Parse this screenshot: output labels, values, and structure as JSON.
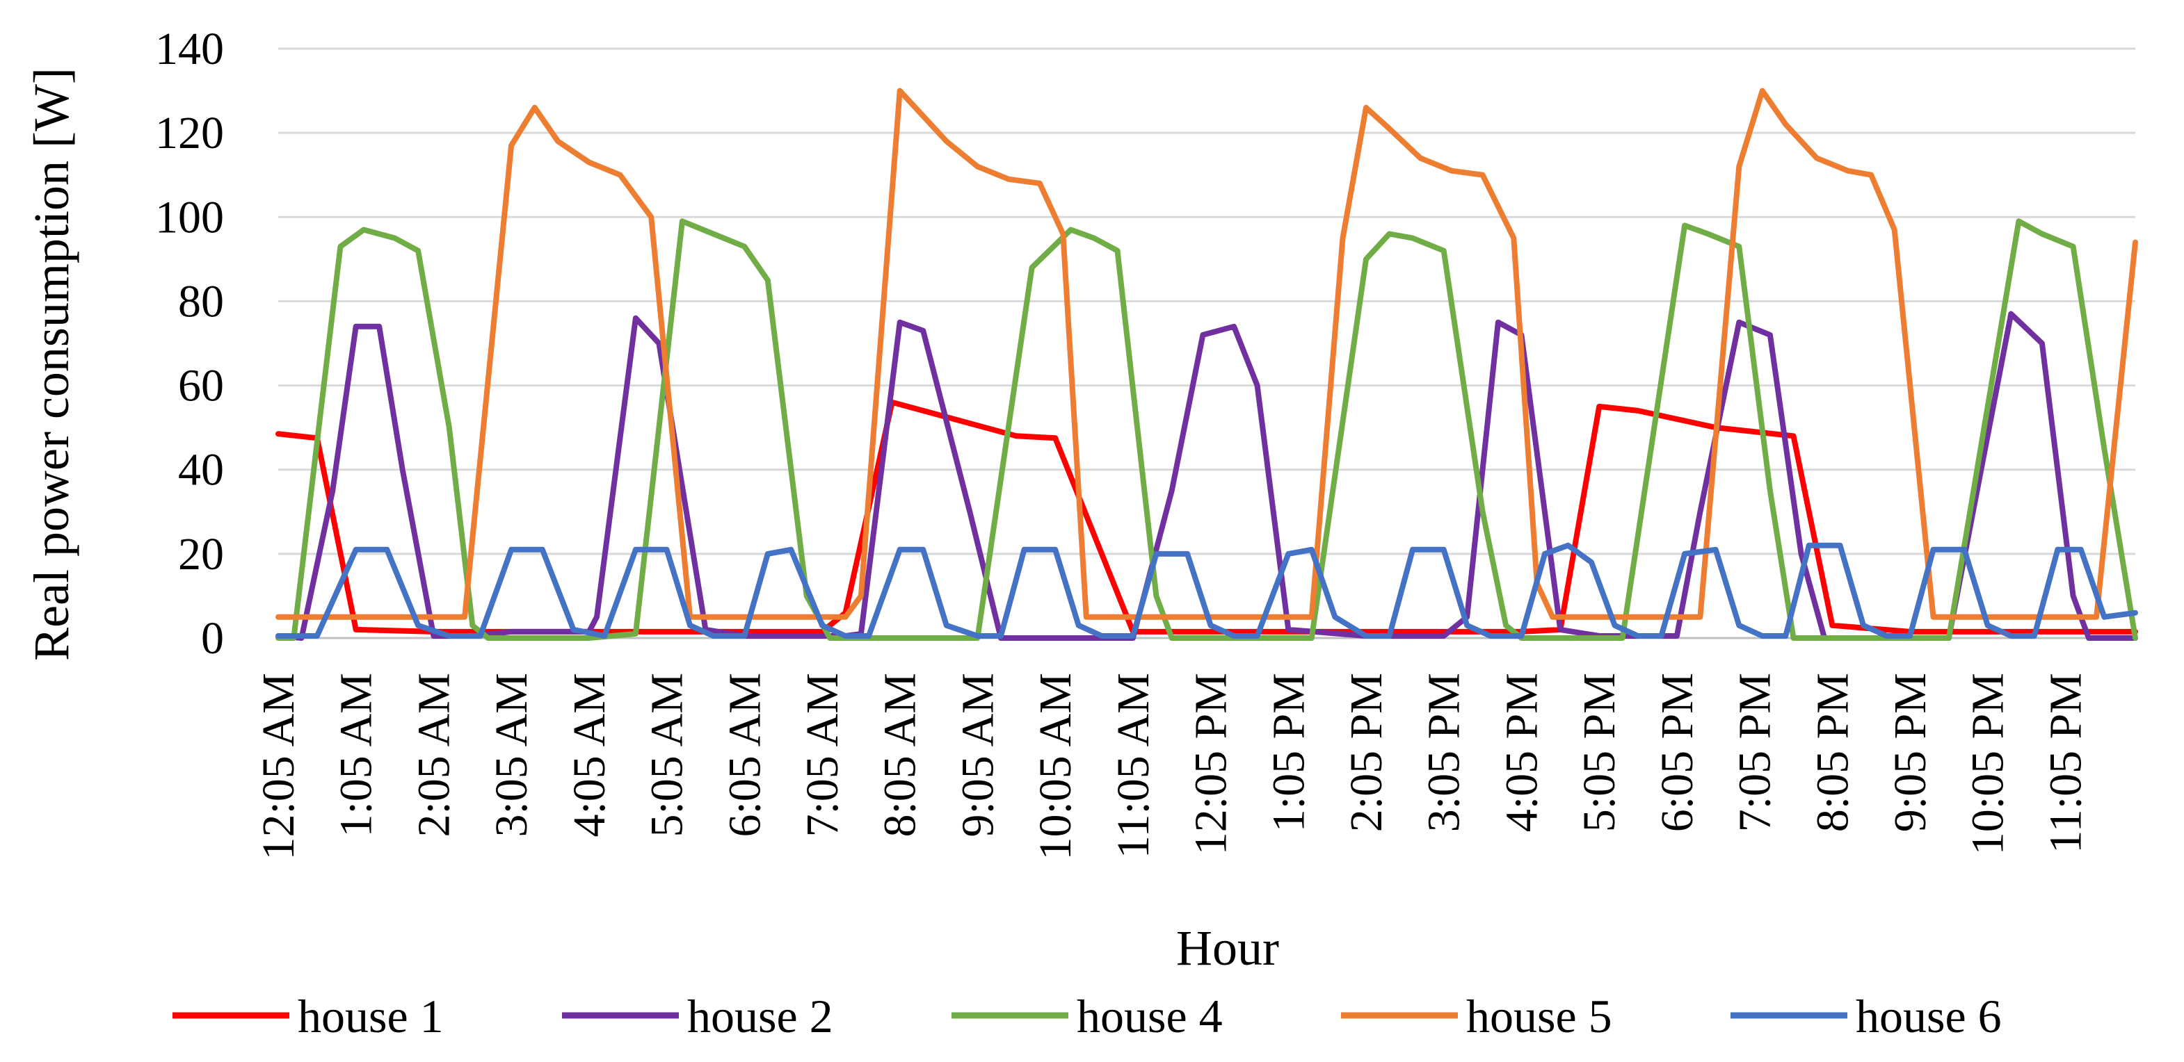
{
  "chart_data": {
    "type": "line",
    "title": "",
    "xlabel": "Hour",
    "ylabel": "Real power consumption [W]",
    "ylim": [
      0,
      140
    ],
    "yticks": [
      0,
      20,
      40,
      60,
      80,
      100,
      120,
      140
    ],
    "grid": true,
    "legend_position": "bottom",
    "x_tick_labels": [
      "12:05 AM",
      "1:05 AM",
      "2:05 AM",
      "3:05 AM",
      "4:05 AM",
      "5:05 AM",
      "6:05 AM",
      "7:05 AM",
      "8:05 AM",
      "9:05 AM",
      "10:05 AM",
      "11:05 AM",
      "12:05 PM",
      "1:05 PM",
      "2:05 PM",
      "3:05 PM",
      "4:05 PM",
      "5:05 PM",
      "6:05 PM",
      "7:05 PM",
      "8:05 PM",
      "9:05 PM",
      "10:05 PM",
      "11:05 PM"
    ],
    "x_range_hours": [
      0,
      23.9
    ],
    "series": [
      {
        "name": "house 1",
        "color": "#ff0000",
        "points": [
          [
            0,
            48.5
          ],
          [
            0.5,
            47.5
          ],
          [
            1,
            2
          ],
          [
            2,
            1.5
          ],
          [
            3,
            1.5
          ],
          [
            4,
            1.5
          ],
          [
            5,
            1.5
          ],
          [
            6,
            1.5
          ],
          [
            7,
            1.5
          ],
          [
            7.3,
            6
          ],
          [
            7.9,
            56
          ],
          [
            8.3,
            54
          ],
          [
            9.5,
            48
          ],
          [
            10,
            47.5
          ],
          [
            11,
            1.5
          ],
          [
            12,
            1.5
          ],
          [
            13,
            1.5
          ],
          [
            14,
            1.5
          ],
          [
            15,
            1.5
          ],
          [
            16,
            1.5
          ],
          [
            16.5,
            2
          ],
          [
            17,
            55
          ],
          [
            17.5,
            54
          ],
          [
            18,
            52
          ],
          [
            18.5,
            50
          ],
          [
            19,
            49
          ],
          [
            19.5,
            48
          ],
          [
            20,
            3
          ],
          [
            21,
            1.5
          ],
          [
            22,
            1.5
          ],
          [
            23,
            1.5
          ],
          [
            23.9,
            1.5
          ]
        ]
      },
      {
        "name": "house 2",
        "color": "#7030a0",
        "points": [
          [
            0,
            0.5
          ],
          [
            0.3,
            0
          ],
          [
            0.7,
            35
          ],
          [
            1,
            74
          ],
          [
            1.3,
            74
          ],
          [
            1.6,
            40
          ],
          [
            2,
            0.5
          ],
          [
            2.5,
            0.5
          ],
          [
            3,
            1.5
          ],
          [
            4,
            1.5
          ],
          [
            4.1,
            5
          ],
          [
            4.6,
            76
          ],
          [
            4.9,
            70
          ],
          [
            5.5,
            2
          ],
          [
            6,
            0.5
          ],
          [
            7,
            0.5
          ],
          [
            7.3,
            0.5
          ],
          [
            7.5,
            1
          ],
          [
            8,
            75
          ],
          [
            8.3,
            73
          ],
          [
            8.9,
            30
          ],
          [
            9.3,
            0
          ],
          [
            10,
            0
          ],
          [
            10.5,
            0
          ],
          [
            11,
            0
          ],
          [
            11.5,
            35
          ],
          [
            11.9,
            72
          ],
          [
            12.3,
            74
          ],
          [
            12.6,
            60
          ],
          [
            13,
            2
          ],
          [
            14,
            0.5
          ],
          [
            15,
            0.5
          ],
          [
            15.3,
            5
          ],
          [
            15.7,
            75
          ],
          [
            16,
            72
          ],
          [
            16.5,
            2
          ],
          [
            17,
            0.5
          ],
          [
            18,
            0.5
          ],
          [
            18.3,
            30
          ],
          [
            18.8,
            75
          ],
          [
            19.2,
            72
          ],
          [
            19.6,
            20
          ],
          [
            19.9,
            0
          ],
          [
            21,
            0
          ],
          [
            21.5,
            0
          ],
          [
            22.3,
            77
          ],
          [
            22.7,
            70
          ],
          [
            23.1,
            10
          ],
          [
            23.3,
            0
          ],
          [
            23.9,
            0
          ]
        ]
      },
      {
        "name": "house 4",
        "color": "#70ad47",
        "points": [
          [
            0,
            0
          ],
          [
            0.2,
            0
          ],
          [
            0.8,
            93
          ],
          [
            1.1,
            97
          ],
          [
            1.5,
            95
          ],
          [
            1.8,
            92
          ],
          [
            2.2,
            50
          ],
          [
            2.5,
            3
          ],
          [
            2.7,
            0
          ],
          [
            3,
            0
          ],
          [
            4,
            0
          ],
          [
            4.6,
            1
          ],
          [
            5.2,
            99
          ],
          [
            5.6,
            96
          ],
          [
            6,
            93
          ],
          [
            6.3,
            85
          ],
          [
            6.8,
            10
          ],
          [
            7.1,
            0
          ],
          [
            8,
            0
          ],
          [
            9,
            0
          ],
          [
            9.7,
            88
          ],
          [
            10.2,
            97
          ],
          [
            10.5,
            95
          ],
          [
            10.8,
            92
          ],
          [
            11.3,
            10
          ],
          [
            11.5,
            0
          ],
          [
            12,
            0
          ],
          [
            13,
            0
          ],
          [
            13.3,
            0
          ],
          [
            14,
            90
          ],
          [
            14.3,
            96
          ],
          [
            14.6,
            95
          ],
          [
            15,
            92
          ],
          [
            15.5,
            30
          ],
          [
            15.8,
            3
          ],
          [
            16,
            0
          ],
          [
            17,
            0
          ],
          [
            17.3,
            0
          ],
          [
            18.1,
            98
          ],
          [
            18.4,
            96
          ],
          [
            18.8,
            93
          ],
          [
            19.2,
            35
          ],
          [
            19.5,
            0
          ],
          [
            20,
            0
          ],
          [
            21,
            0
          ],
          [
            21.5,
            0
          ],
          [
            22.4,
            99
          ],
          [
            22.7,
            96
          ],
          [
            23.1,
            93
          ],
          [
            23.5,
            45
          ],
          [
            23.9,
            0
          ]
        ]
      },
      {
        "name": "house 5",
        "color": "#ed7d31",
        "points": [
          [
            0,
            5
          ],
          [
            1,
            5
          ],
          [
            2,
            5
          ],
          [
            2.4,
            5
          ],
          [
            3,
            117
          ],
          [
            3.3,
            126
          ],
          [
            3.6,
            118
          ],
          [
            4,
            113
          ],
          [
            4.4,
            110
          ],
          [
            4.8,
            100
          ],
          [
            5.3,
            5
          ],
          [
            6,
            5
          ],
          [
            7,
            5
          ],
          [
            7.3,
            5
          ],
          [
            7.5,
            10
          ],
          [
            8,
            130
          ],
          [
            8.3,
            124
          ],
          [
            8.6,
            118
          ],
          [
            9,
            112
          ],
          [
            9.4,
            109
          ],
          [
            9.8,
            108
          ],
          [
            10.1,
            96
          ],
          [
            10.4,
            5
          ],
          [
            11,
            5
          ],
          [
            11.5,
            5
          ],
          [
            12,
            5
          ],
          [
            13,
            5
          ],
          [
            13.3,
            5
          ],
          [
            13.7,
            95
          ],
          [
            14,
            126
          ],
          [
            14.3,
            121
          ],
          [
            14.7,
            114
          ],
          [
            15.1,
            111
          ],
          [
            15.5,
            110
          ],
          [
            15.9,
            95
          ],
          [
            16.2,
            13
          ],
          [
            16.4,
            5
          ],
          [
            17,
            5
          ],
          [
            18,
            5
          ],
          [
            18.3,
            5
          ],
          [
            18.8,
            112
          ],
          [
            19.1,
            130
          ],
          [
            19.4,
            122
          ],
          [
            19.8,
            114
          ],
          [
            20.2,
            111
          ],
          [
            20.5,
            110
          ],
          [
            20.8,
            97
          ],
          [
            21.3,
            5
          ],
          [
            22,
            5
          ],
          [
            23,
            5
          ],
          [
            23.4,
            5
          ],
          [
            23.9,
            94
          ]
        ]
      },
      {
        "name": "house 6",
        "color": "#4472c4",
        "points": [
          [
            0,
            0.5
          ],
          [
            0.5,
            0.5
          ],
          [
            1,
            21
          ],
          [
            1.4,
            21
          ],
          [
            1.8,
            3
          ],
          [
            2.2,
            0.5
          ],
          [
            2.6,
            0.5
          ],
          [
            3,
            21
          ],
          [
            3.4,
            21
          ],
          [
            3.8,
            2
          ],
          [
            4.2,
            0.5
          ],
          [
            4.6,
            21
          ],
          [
            5,
            21
          ],
          [
            5.3,
            3
          ],
          [
            5.6,
            0.5
          ],
          [
            6,
            0.5
          ],
          [
            6.3,
            20
          ],
          [
            6.6,
            21
          ],
          [
            7,
            3
          ],
          [
            7.3,
            0.5
          ],
          [
            7.6,
            0.5
          ],
          [
            8,
            21
          ],
          [
            8.3,
            21
          ],
          [
            8.6,
            3
          ],
          [
            9,
            0.5
          ],
          [
            9.3,
            0.5
          ],
          [
            9.6,
            21
          ],
          [
            10,
            21
          ],
          [
            10.3,
            3
          ],
          [
            10.6,
            0.5
          ],
          [
            11,
            0.5
          ],
          [
            11.3,
            20
          ],
          [
            11.7,
            20
          ],
          [
            12,
            3
          ],
          [
            12.3,
            0.5
          ],
          [
            12.6,
            0.5
          ],
          [
            13,
            20
          ],
          [
            13.3,
            21
          ],
          [
            13.6,
            5
          ],
          [
            14,
            0.5
          ],
          [
            14.3,
            0.5
          ],
          [
            14.6,
            21
          ],
          [
            15,
            21
          ],
          [
            15.3,
            3
          ],
          [
            15.6,
            0.5
          ],
          [
            16,
            0.5
          ],
          [
            16.3,
            20
          ],
          [
            16.6,
            22
          ],
          [
            16.9,
            18
          ],
          [
            17.2,
            3
          ],
          [
            17.5,
            0.5
          ],
          [
            17.8,
            0.5
          ],
          [
            18.1,
            20
          ],
          [
            18.5,
            21
          ],
          [
            18.8,
            3
          ],
          [
            19.1,
            0.5
          ],
          [
            19.4,
            0.5
          ],
          [
            19.7,
            22
          ],
          [
            20.1,
            22
          ],
          [
            20.4,
            3
          ],
          [
            20.7,
            0.5
          ],
          [
            21,
            0.5
          ],
          [
            21.3,
            21
          ],
          [
            21.7,
            21
          ],
          [
            22,
            3
          ],
          [
            22.3,
            0.5
          ],
          [
            22.6,
            0.5
          ],
          [
            22.9,
            21
          ],
          [
            23.2,
            21
          ],
          [
            23.5,
            5
          ],
          [
            23.9,
            6
          ]
        ]
      }
    ]
  }
}
